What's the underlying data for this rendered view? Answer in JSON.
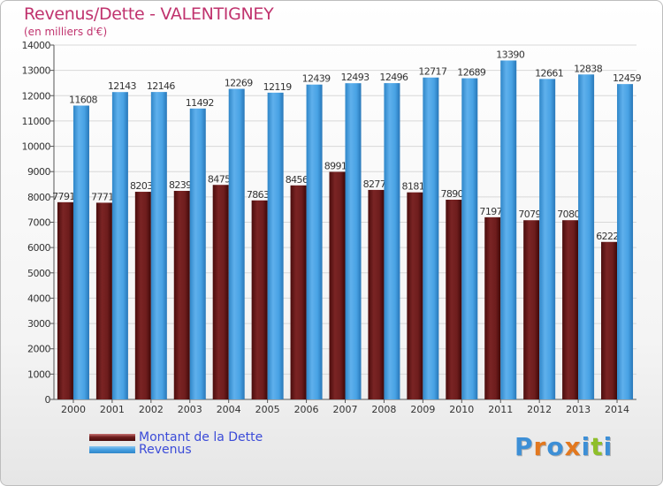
{
  "header": {
    "title": "Revenus/Dette - VALENTIGNEY",
    "subtitle": "(en milliers d'€)"
  },
  "legend": {
    "items": [
      {
        "label": "Montant de la Dette",
        "color": "#6e1d1d"
      },
      {
        "label": "Revenus",
        "color": "#48a2e4"
      }
    ]
  },
  "logo": {
    "text": "Proxiti",
    "letter_colors": [
      "#3d8fd6",
      "#e2781f",
      "#3d8fd6",
      "#e2781f",
      "#3d8fd6",
      "#8fbf2a",
      "#3d8fd6"
    ]
  },
  "chart_data": {
    "type": "bar",
    "categories": [
      "2000",
      "2001",
      "2002",
      "2003",
      "2004",
      "2005",
      "2006",
      "2007",
      "2008",
      "2009",
      "2010",
      "2011",
      "2012",
      "2013",
      "2014"
    ],
    "series": [
      {
        "name": "Montant de la Dette",
        "color": "#6e1d1d",
        "values": [
          7791,
          7771,
          8203,
          8239,
          8475,
          7863,
          8456,
          8991,
          8277,
          8181,
          7890,
          7197,
          7079,
          7080,
          6222
        ],
        "labels": [
          "7791",
          "7771",
          "8203",
          "8239",
          "8475",
          "7863",
          "8456",
          "8991",
          "8277",
          "8181",
          "7890",
          "7197",
          "7079",
          "7080",
          "6222"
        ]
      },
      {
        "name": "Revenus",
        "color": "#48a2e4",
        "values": [
          11608,
          12143,
          12146,
          11492,
          12269,
          12119,
          12439,
          12493,
          12496,
          12717,
          12689,
          13390,
          12661,
          12838,
          12459
        ],
        "labels": [
          "11608",
          "12143",
          "12146",
          "11492",
          "12269",
          "12119",
          "12439",
          "12493",
          "12496",
          "12717",
          "12689",
          "13390",
          "12661",
          "12838",
          "12459"
        ]
      }
    ],
    "ylim": [
      0,
      14000
    ],
    "yticks": [
      0,
      1000,
      2000,
      3000,
      4000,
      5000,
      6000,
      7000,
      8000,
      9000,
      10000,
      11000,
      12000,
      13000,
      14000
    ],
    "grid": true,
    "legend_position": "bottom-left"
  }
}
